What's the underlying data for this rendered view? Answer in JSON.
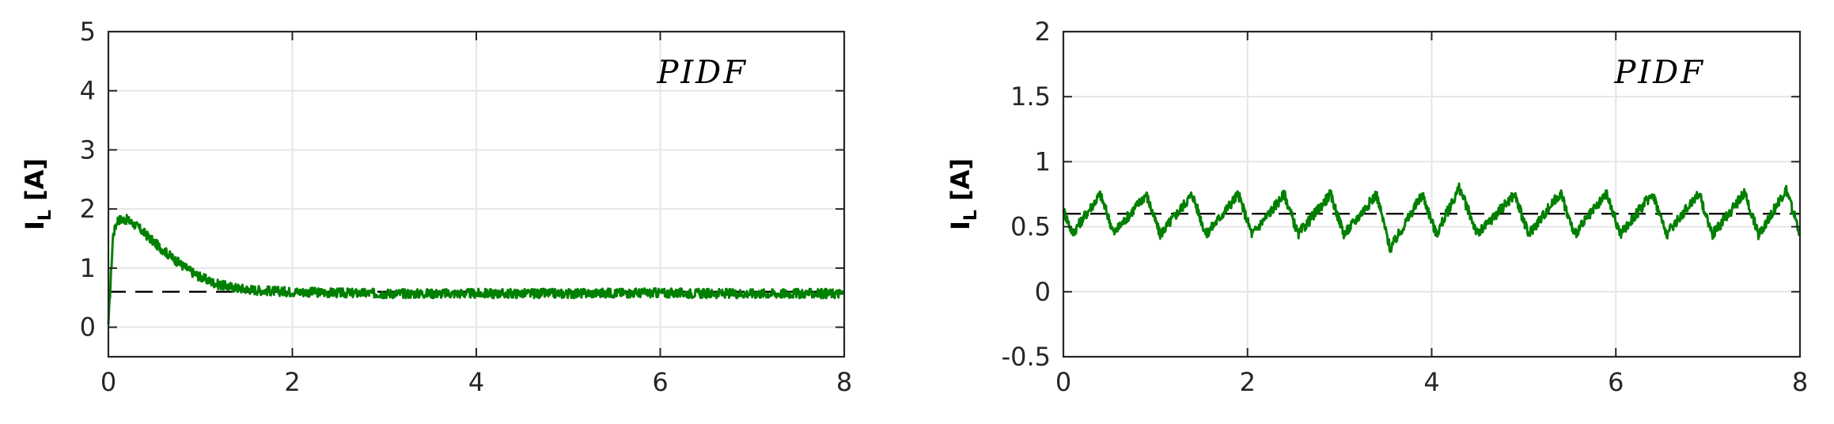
{
  "chart_data": [
    {
      "type": "line",
      "xlim": [
        0,
        8
      ],
      "ylim": [
        -0.5,
        5
      ],
      "xticks": [
        0,
        2,
        4,
        6,
        8
      ],
      "yticks": [
        0,
        1,
        2,
        3,
        4,
        5
      ],
      "xtick_labels": [
        "0",
        "2",
        "4",
        "6",
        "8"
      ],
      "ytick_labels": [
        "0",
        "1",
        "2",
        "3",
        "4",
        "5"
      ],
      "ylabel": "I",
      "ylabel_subscript": "L",
      "ylabel_suffix": " [A]",
      "annotation": "PIDF",
      "grid": true,
      "series": [
        {
          "color": "#008000",
          "x": [
            0,
            0.05,
            0.1,
            0.2,
            0.3,
            0.4,
            0.5,
            0.6,
            0.7,
            0.8,
            0.9,
            1.0,
            1.1,
            1.2,
            1.4,
            1.6,
            1.8,
            2.0,
            2.5,
            3.0,
            3.5,
            4.0,
            4.5,
            5.0,
            5.5,
            6.0,
            6.5,
            7.0,
            7.5,
            8.0
          ],
          "y": [
            0.05,
            1.55,
            1.82,
            1.82,
            1.72,
            1.58,
            1.43,
            1.3,
            1.17,
            1.05,
            0.94,
            0.85,
            0.78,
            0.72,
            0.66,
            0.63,
            0.61,
            0.6,
            0.58,
            0.57,
            0.57,
            0.57,
            0.57,
            0.57,
            0.58,
            0.58,
            0.57,
            0.57,
            0.57,
            0.57
          ],
          "noise_amplitude": 0.08
        }
      ],
      "reference": {
        "y": 0.6,
        "style": "dashed",
        "color": "#000000"
      }
    },
    {
      "type": "line",
      "xlim": [
        0,
        8
      ],
      "ylim": [
        -0.5,
        2
      ],
      "xticks": [
        0,
        2,
        4,
        6,
        8
      ],
      "yticks": [
        -0.5,
        0,
        0.5,
        1,
        1.5,
        2
      ],
      "xtick_labels": [
        "0",
        "2",
        "4",
        "6",
        "8"
      ],
      "ytick_labels": [
        "-0.5",
        "0",
        "0.5",
        "1",
        "1.5",
        "2"
      ],
      "ylabel": "I",
      "ylabel_subscript": "L",
      "ylabel_suffix": " [A]",
      "annotation": "PIDF",
      "grid": true,
      "series": [
        {
          "color": "#008000",
          "x": [
            0,
            0.1,
            0.4,
            0.55,
            0.9,
            1.05,
            1.4,
            1.55,
            1.9,
            2.05,
            2.4,
            2.55,
            2.9,
            3.05,
            3.4,
            3.55,
            3.9,
            4.05,
            4.3,
            4.5,
            4.9,
            5.05,
            5.4,
            5.55,
            5.9,
            6.05,
            6.4,
            6.55,
            6.9,
            7.05,
            7.4,
            7.55,
            7.85,
            8.0
          ],
          "y": [
            0.63,
            0.45,
            0.75,
            0.45,
            0.75,
            0.44,
            0.75,
            0.44,
            0.75,
            0.44,
            0.75,
            0.44,
            0.75,
            0.44,
            0.75,
            0.33,
            0.75,
            0.44,
            0.8,
            0.44,
            0.75,
            0.44,
            0.76,
            0.44,
            0.75,
            0.44,
            0.76,
            0.44,
            0.76,
            0.44,
            0.76,
            0.44,
            0.78,
            0.45
          ],
          "noise_amplitude": 0.04
        }
      ],
      "reference": {
        "y": 0.6,
        "style": "dashed",
        "color": "#000000"
      }
    }
  ]
}
